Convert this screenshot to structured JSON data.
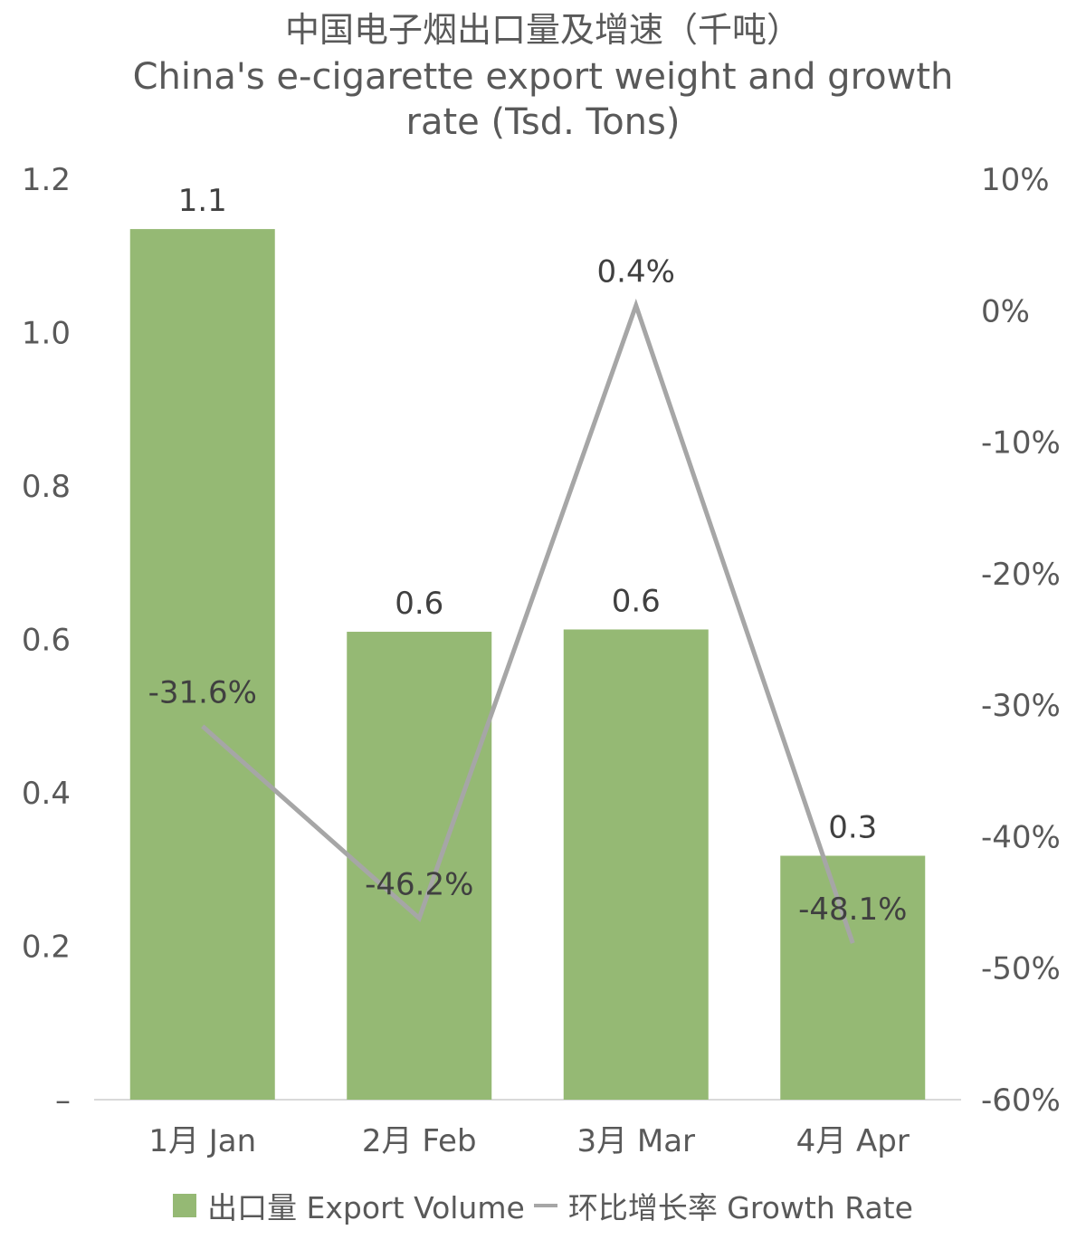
{
  "title": {
    "cn": "中国电子烟出口量及增速（千吨）",
    "en_line1": "China's e-cigarette export weight and growth",
    "en_line2": "rate (Tsd. Tons)"
  },
  "colors": {
    "bar": "#95b974",
    "line": "#a6a6a6",
    "axis": "#d9d9d9",
    "text": "#404040"
  },
  "legend": {
    "bar_label": "出口量 Export Volume",
    "line_label": "环比增长率 Growth Rate"
  },
  "chart_data": {
    "type": "bar",
    "categories": [
      "1月 Jan",
      "2月 Feb",
      "3月 Mar",
      "4月 Apr"
    ],
    "series": [
      {
        "name": "出口量 Export Volume",
        "type": "bar",
        "axis": "left",
        "values": [
          1.135,
          0.61,
          0.613,
          0.318
        ],
        "labels": [
          "1.1",
          "0.6",
          "0.6",
          "0.3"
        ]
      },
      {
        "name": "环比增长率 Growth Rate",
        "type": "line",
        "axis": "right",
        "values": [
          -31.6,
          -46.2,
          0.4,
          -48.1
        ],
        "labels": [
          "-31.6%",
          "-46.2%",
          "0.4%",
          "-48.1%"
        ]
      }
    ],
    "left_axis": {
      "ylim": [
        0,
        1.2
      ],
      "ticks": [
        "–",
        "0.2",
        "0.4",
        "0.6",
        "0.8",
        "1.0",
        "1.2"
      ]
    },
    "right_axis": {
      "ylim": [
        -60,
        10
      ],
      "ticks": [
        "-60%",
        "-50%",
        "-40%",
        "-30%",
        "-20%",
        "-10%",
        "0%",
        "10%"
      ]
    },
    "grid": false,
    "legend_position": "bottom"
  }
}
